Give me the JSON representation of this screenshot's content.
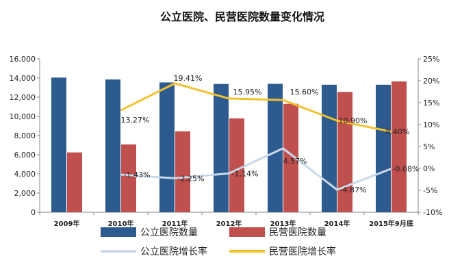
{
  "chart_data": {
    "type": "bar",
    "title": "公立医院、民营医院数量变化情况",
    "categories": [
      "2009年",
      "2010年",
      "2011年",
      "2012年",
      "2013年",
      "2014年",
      "2015年9月底"
    ],
    "y_left": {
      "ticks": [
        "0",
        "2,000",
        "4,000",
        "6,000",
        "8,000",
        "10,000",
        "12,000",
        "14,000",
        "16,000"
      ],
      "lim": [
        0,
        16000
      ]
    },
    "y_right": {
      "ticks": [
        "-10%",
        "-5%",
        "0%",
        "5%",
        "10%",
        "15%",
        "20%",
        "25%"
      ],
      "lim": [
        -10,
        25
      ]
    },
    "grid": false,
    "legend_position": "bottom",
    "series": [
      {
        "name": "公立医院数量",
        "type": "bar",
        "axis": "left",
        "color": "#2e5b8f",
        "values": [
          14050,
          13850,
          13540,
          13380,
          13400,
          13300,
          13300
        ]
      },
      {
        "name": "民营医院数量",
        "type": "bar",
        "axis": "left",
        "color": "#c0504d",
        "values": [
          6240,
          7070,
          8440,
          9790,
          11310,
          12550,
          13650
        ]
      },
      {
        "name": "公立医院增长率",
        "type": "line",
        "axis": "right",
        "color": "#c9d9ea",
        "values": [
          null,
          -1.43,
          -2.25,
          -1.14,
          4.57,
          -4.87,
          -0.08
        ],
        "labels": [
          "",
          "-1.43%",
          "-2.25%",
          "-1.14%",
          "4.57%",
          "-4.87%",
          "-0.08%"
        ]
      },
      {
        "name": "民营医院增长率",
        "type": "line",
        "axis": "right",
        "color": "#f2c12e",
        "values": [
          null,
          13.27,
          19.41,
          15.95,
          15.6,
          10.9,
          8.4
        ],
        "labels": [
          "",
          "13.27%",
          "19.41%",
          "15.95%",
          "15.60%",
          "10.90%",
          "8.40%"
        ]
      }
    ]
  }
}
